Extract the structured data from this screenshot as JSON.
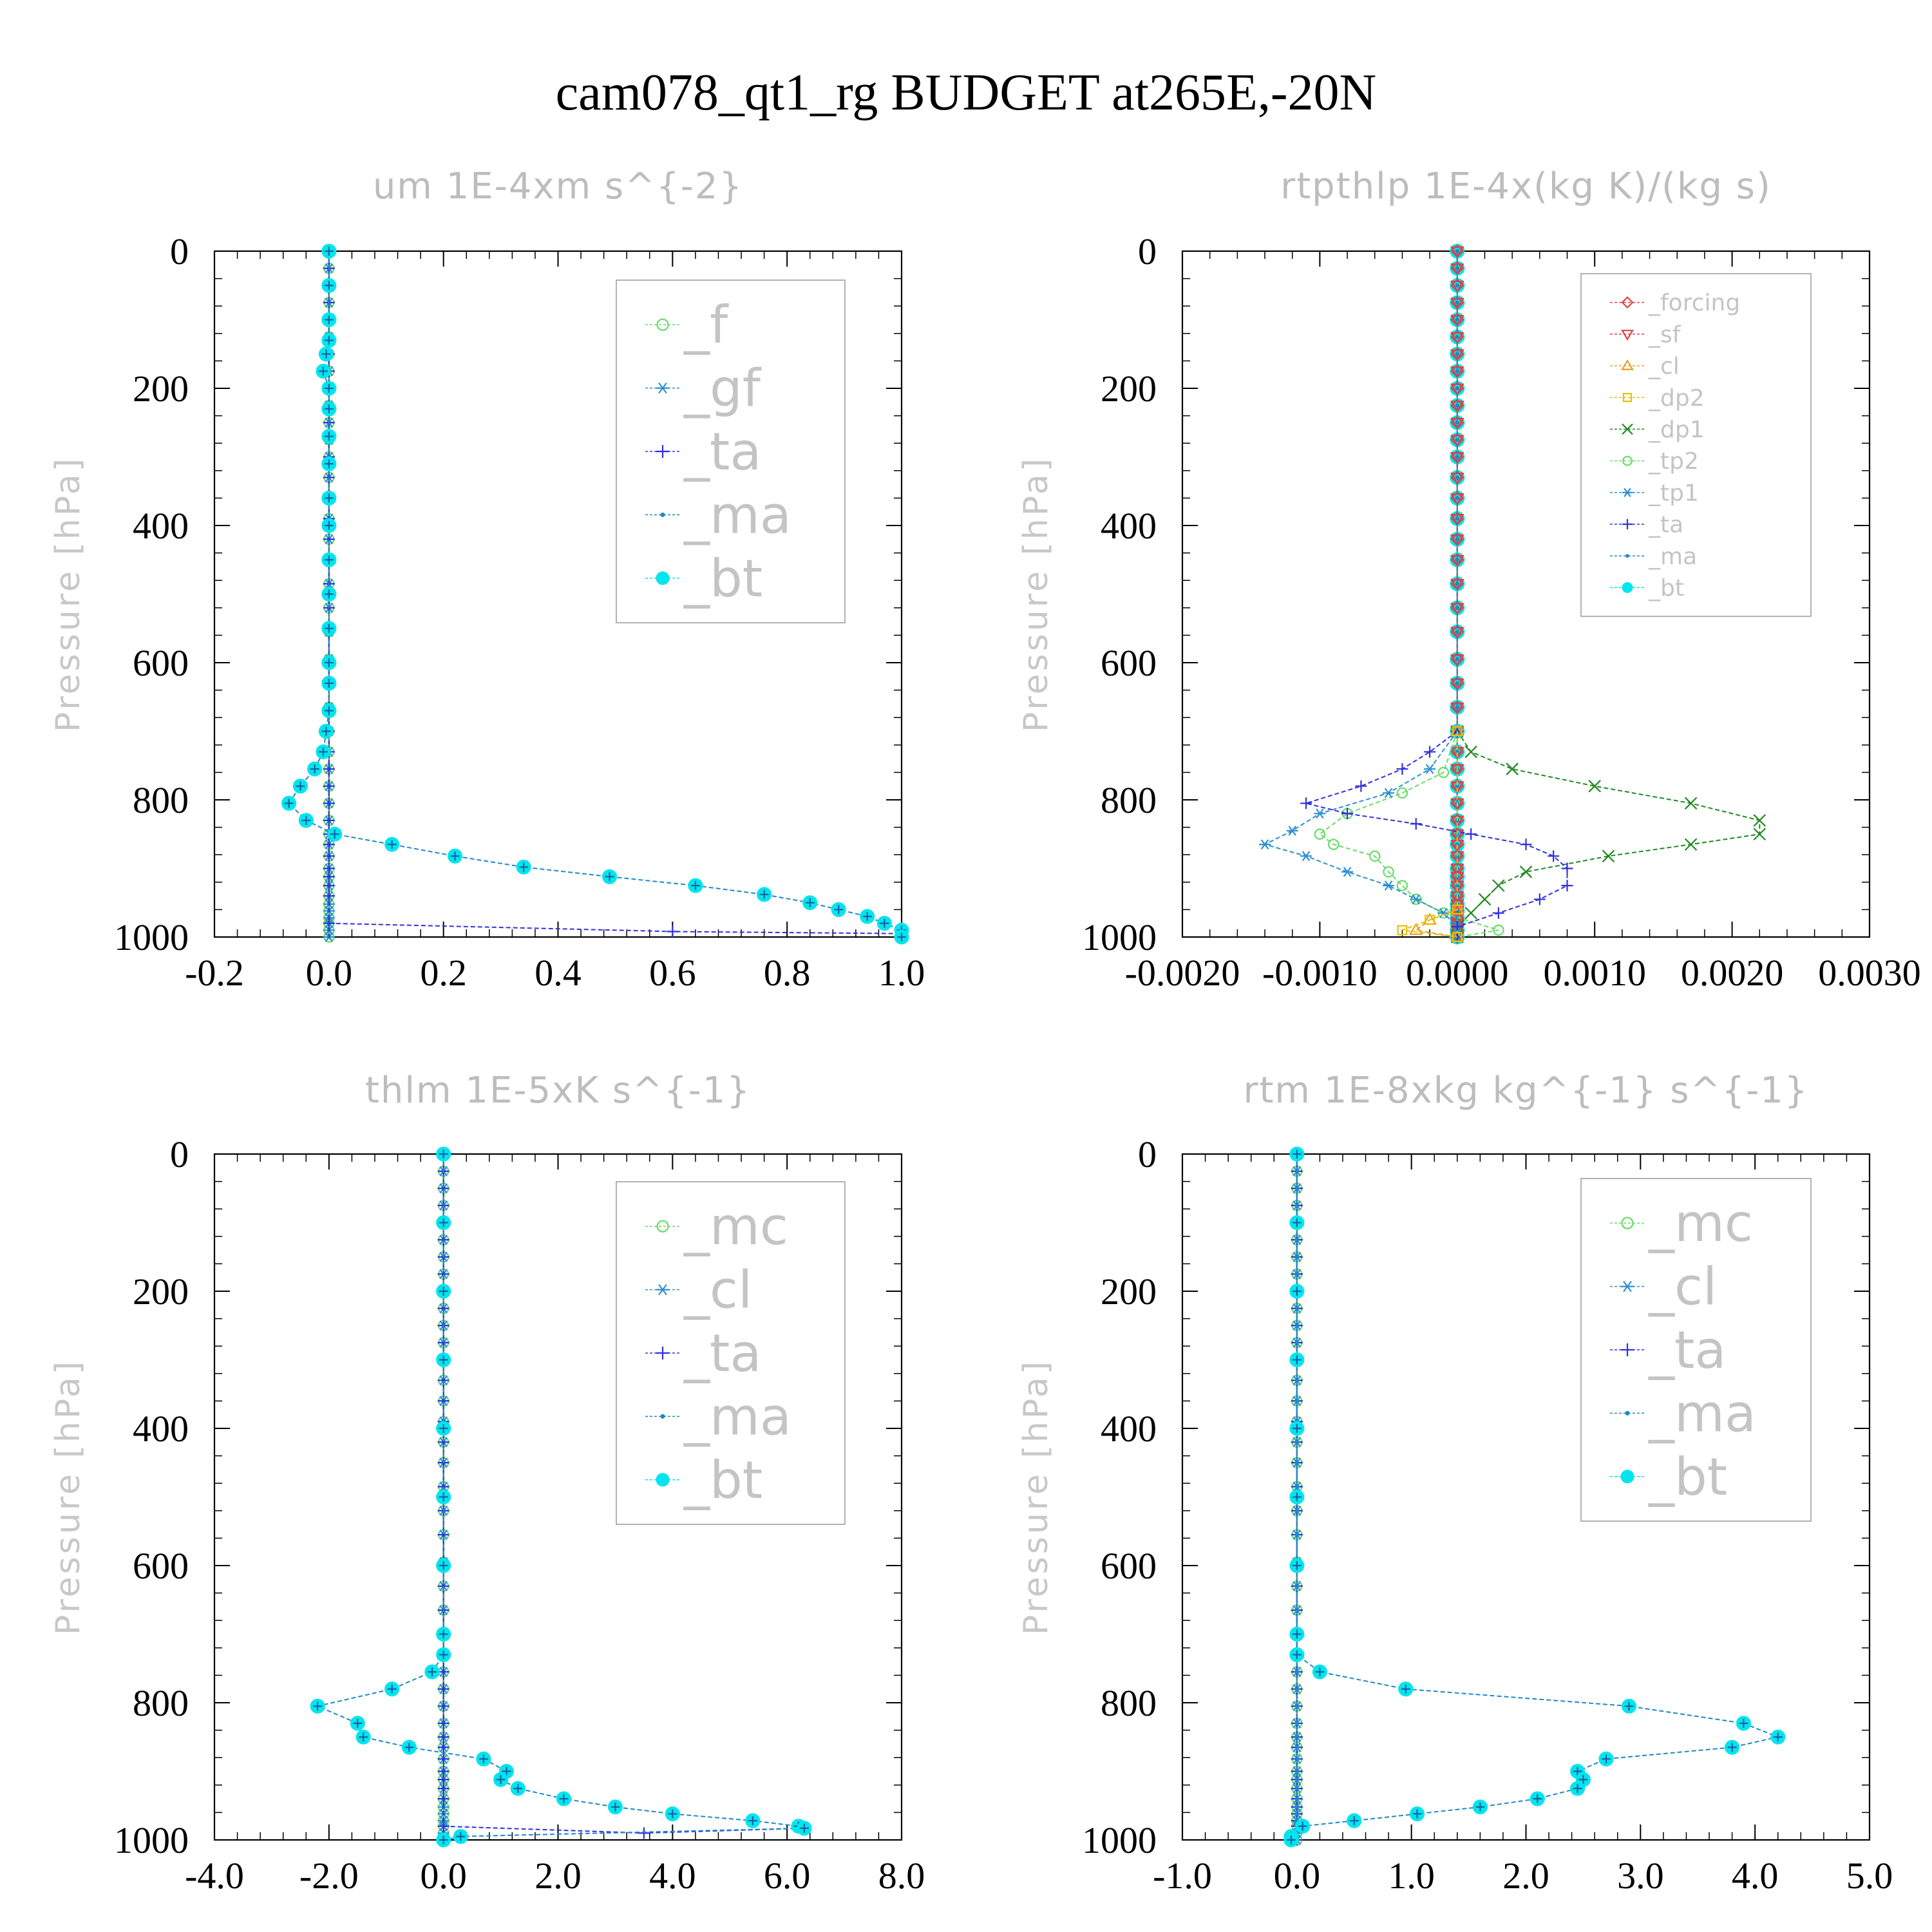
{
  "suptitle": "cam078_qt1_rg  BUDGET at265E,-20N",
  "colors": {
    "_f": "#66dd66",
    "_gf": "#2d8fd0",
    "_ta": "#3030dd",
    "_ma": "#1e88c8",
    "_bt": "#00e5ee",
    "_forcing": "#e04040",
    "_sf": "#e04040",
    "_cl": "#e8a020",
    "_dp2": "#e8c000",
    "_dp1": "#208a20",
    "_tp2": "#66dd66",
    "_tp1": "#2d8fd0",
    "_mc": "#66dd66",
    "_cl_blue": "#2d8fd0"
  },
  "chart_data": [
    {
      "id": "um",
      "type": "line",
      "title": "um   1E-4xm s^{-2}",
      "ylabel": "Pressure [hPa]",
      "xlim": [
        -0.2,
        1.0
      ],
      "ylim": [
        1000,
        0
      ],
      "y_inverted": true,
      "xticks": [
        "-0.2",
        "0.0",
        "0.2",
        "0.4",
        "0.6",
        "0.8",
        "1.0"
      ],
      "yticks": [
        "0",
        "200",
        "400",
        "600",
        "800",
        "1000"
      ],
      "legend": [
        {
          "name": "_f",
          "marker": "circle",
          "color_key": "_f"
        },
        {
          "name": "_gf",
          "marker": "asterisk",
          "color_key": "_gf"
        },
        {
          "name": "_ta",
          "marker": "plus",
          "color_key": "_ta"
        },
        {
          "name": "_ma",
          "marker": "dot",
          "color_key": "_ma"
        },
        {
          "name": "_bt",
          "marker": "filled",
          "color_key": "_bt"
        }
      ],
      "legend_large": true,
      "series": [
        {
          "name": "_f",
          "flat": 0.0
        },
        {
          "name": "_gf",
          "flat": 0.0
        },
        {
          "name": "_ta",
          "flat": 0.0,
          "points": [
            [
              0.0,
              980
            ],
            [
              0.6,
              992
            ],
            [
              1.0,
              995
            ]
          ]
        },
        {
          "name": "_ma",
          "flat": 0.0
        },
        {
          "name": "_bt",
          "points": [
            [
              0.0,
              0
            ],
            [
              0.0,
              50
            ],
            [
              0.0,
              100
            ],
            [
              0.0,
              130
            ],
            [
              -0.005,
              150
            ],
            [
              -0.01,
              175
            ],
            [
              0.0,
              200
            ],
            [
              0.0,
              230
            ],
            [
              0.0,
              270
            ],
            [
              0.0,
              310
            ],
            [
              0.0,
              360
            ],
            [
              0.0,
              400
            ],
            [
              0.0,
              450
            ],
            [
              0.0,
              500
            ],
            [
              0.0,
              550
            ],
            [
              0.0,
              600
            ],
            [
              0.0,
              630
            ],
            [
              0.0,
              670
            ],
            [
              -0.005,
              700
            ],
            [
              -0.01,
              730
            ],
            [
              -0.025,
              755
            ],
            [
              -0.05,
              780
            ],
            [
              -0.07,
              805
            ],
            [
              -0.04,
              830
            ],
            [
              0.01,
              850
            ],
            [
              0.11,
              865
            ],
            [
              0.22,
              882
            ],
            [
              0.34,
              898
            ],
            [
              0.49,
              912
            ],
            [
              0.64,
              925
            ],
            [
              0.76,
              938
            ],
            [
              0.84,
              950
            ],
            [
              0.89,
              960
            ],
            [
              0.94,
              970
            ],
            [
              0.97,
              980
            ],
            [
              1.0,
              990
            ],
            [
              1.0,
              1000
            ]
          ]
        }
      ]
    },
    {
      "id": "rtpthlp",
      "type": "line",
      "title": "rtpthlp   1E-4x(kg K)/(kg s)",
      "ylabel": "Pressure [hPa]",
      "xlim": [
        -0.002,
        0.003
      ],
      "ylim": [
        1000,
        0
      ],
      "y_inverted": true,
      "xticks": [
        "-0.0020",
        "-0.0010",
        "0.0000",
        "0.0010",
        "0.0020",
        "0.0030"
      ],
      "yticks": [
        "0",
        "200",
        "400",
        "600",
        "800",
        "1000"
      ],
      "legend": [
        {
          "name": "_forcing",
          "marker": "diamond",
          "color_key": "_forcing"
        },
        {
          "name": "_sf",
          "marker": "tri-down",
          "color_key": "_sf"
        },
        {
          "name": "_cl",
          "marker": "tri-up",
          "color_key": "_cl"
        },
        {
          "name": "_dp2",
          "marker": "square",
          "color_key": "_dp2"
        },
        {
          "name": "_dp1",
          "marker": "x",
          "color_key": "_dp1"
        },
        {
          "name": "_tp2",
          "marker": "circle",
          "color_key": "_tp2"
        },
        {
          "name": "_tp1",
          "marker": "asterisk",
          "color_key": "_tp1"
        },
        {
          "name": "_ta",
          "marker": "plus",
          "color_key": "_ta"
        },
        {
          "name": "_ma",
          "marker": "dot",
          "color_key": "_ma"
        },
        {
          "name": "_bt",
          "marker": "filled",
          "color_key": "_bt"
        }
      ],
      "legend_large": false,
      "series": [
        {
          "name": "_dp1",
          "points": [
            [
              0.0,
              700
            ],
            [
              0.0001,
              730
            ],
            [
              0.0004,
              755
            ],
            [
              0.001,
              780
            ],
            [
              0.0017,
              805
            ],
            [
              0.0022,
              830
            ],
            [
              0.0022,
              850
            ],
            [
              0.0017,
              865
            ],
            [
              0.0011,
              882
            ],
            [
              0.0005,
              905
            ],
            [
              0.0003,
              925
            ],
            [
              0.0002,
              945
            ],
            [
              0.0001,
              965
            ],
            [
              0.0,
              985
            ],
            [
              0.0,
              1000
            ]
          ]
        },
        {
          "name": "_tp2",
          "points": [
            [
              0.0,
              700
            ],
            [
              -0.0001,
              760
            ],
            [
              -0.0004,
              790
            ],
            [
              -0.0008,
              820
            ],
            [
              -0.001,
              850
            ],
            [
              -0.0009,
              865
            ],
            [
              -0.0006,
              882
            ],
            [
              -0.0005,
              905
            ],
            [
              -0.0004,
              925
            ],
            [
              -0.0003,
              945
            ],
            [
              -0.0001,
              965
            ],
            [
              0.0003,
              990
            ],
            [
              0.0,
              1000
            ]
          ]
        },
        {
          "name": "_tp1",
          "points": [
            [
              0.0,
              700
            ],
            [
              -0.0002,
              755
            ],
            [
              -0.0005,
              790
            ],
            [
              -0.001,
              820
            ],
            [
              -0.0012,
              845
            ],
            [
              -0.0014,
              865
            ],
            [
              -0.0011,
              882
            ],
            [
              -0.0008,
              905
            ],
            [
              -0.0005,
              925
            ],
            [
              -0.0003,
              945
            ],
            [
              -0.0001,
              965
            ],
            [
              0.0,
              985
            ],
            [
              0.0,
              1000
            ]
          ]
        },
        {
          "name": "_ta",
          "points": [
            [
              0.0,
              700
            ],
            [
              -0.0002,
              730
            ],
            [
              -0.0004,
              755
            ],
            [
              -0.0007,
              780
            ],
            [
              -0.0011,
              805
            ],
            [
              -0.0008,
              820
            ],
            [
              -0.0003,
              835
            ],
            [
              0.0001,
              850
            ],
            [
              0.0005,
              865
            ],
            [
              0.0007,
              882
            ],
            [
              0.0008,
              900
            ],
            [
              0.0008,
              925
            ],
            [
              0.0006,
              945
            ],
            [
              0.0003,
              965
            ],
            [
              0.0,
              985
            ],
            [
              0.0,
              1000
            ]
          ]
        },
        {
          "name": "_cl",
          "points": [
            [
              0.0,
              700
            ],
            [
              0.0,
              960
            ],
            [
              -0.0002,
              975
            ],
            [
              -0.0003,
              990
            ],
            [
              0.0,
              1000
            ]
          ]
        },
        {
          "name": "_dp2",
          "points": [
            [
              0.0,
              700
            ],
            [
              0.0,
              960
            ],
            [
              -0.0002,
              975
            ],
            [
              -0.0004,
              990
            ],
            [
              0.0,
              1000
            ]
          ]
        },
        {
          "name": "_bt",
          "flat": 0.0
        },
        {
          "name": "_forcing",
          "flat": 0.0
        },
        {
          "name": "_sf",
          "flat": 0.0
        },
        {
          "name": "_ma",
          "flat": 0.0
        }
      ]
    },
    {
      "id": "thlm",
      "type": "line",
      "title": "thlm   1E-5xK s^{-1}",
      "ylabel": "Pressure [hPa]",
      "xlim": [
        -4.0,
        8.0
      ],
      "ylim": [
        1000,
        0
      ],
      "y_inverted": true,
      "xticks": [
        "-4.0",
        "-2.0",
        "0.0",
        "2.0",
        "4.0",
        "6.0",
        "8.0"
      ],
      "yticks": [
        "0",
        "200",
        "400",
        "600",
        "800",
        "1000"
      ],
      "legend": [
        {
          "name": "_mc",
          "marker": "circle",
          "color_key": "_mc"
        },
        {
          "name": "_cl",
          "marker": "asterisk",
          "color_key": "_cl_blue"
        },
        {
          "name": "_ta",
          "marker": "plus",
          "color_key": "_ta"
        },
        {
          "name": "_ma",
          "marker": "dot",
          "color_key": "_ma"
        },
        {
          "name": "_bt",
          "marker": "filled",
          "color_key": "_bt"
        }
      ],
      "legend_large": true,
      "series": [
        {
          "name": "_mc",
          "flat": 0.0
        },
        {
          "name": "_cl",
          "flat": 0.0
        },
        {
          "name": "_ta",
          "flat": 0.0,
          "points": [
            [
              0.0,
              980
            ],
            [
              3.5,
              990
            ],
            [
              6.3,
              983
            ]
          ]
        },
        {
          "name": "_ma",
          "flat": 0.0
        },
        {
          "name": "_bt",
          "points": [
            [
              0.0,
              0
            ],
            [
              0.0,
              100
            ],
            [
              0.0,
              200
            ],
            [
              0.0,
              300
            ],
            [
              0.0,
              400
            ],
            [
              0.0,
              500
            ],
            [
              0.0,
              600
            ],
            [
              0.0,
              700
            ],
            [
              0.0,
              730
            ],
            [
              -0.2,
              755
            ],
            [
              -0.9,
              780
            ],
            [
              -2.2,
              805
            ],
            [
              -1.5,
              830
            ],
            [
              -1.4,
              850
            ],
            [
              -0.6,
              865
            ],
            [
              0.7,
              882
            ],
            [
              1.1,
              900
            ],
            [
              1.0,
              912
            ],
            [
              1.3,
              925
            ],
            [
              2.1,
              940
            ],
            [
              3.0,
              952
            ],
            [
              4.0,
              962
            ],
            [
              5.4,
              972
            ],
            [
              6.2,
              980
            ],
            [
              6.3,
              983
            ],
            [
              0.3,
              995
            ],
            [
              0.0,
              1000
            ]
          ]
        }
      ]
    },
    {
      "id": "rtm",
      "type": "line",
      "title": "rtm   1E-8xkg kg^{-1} s^{-1}",
      "ylabel": "Pressure [hPa]",
      "xlim": [
        -1.0,
        5.0
      ],
      "ylim": [
        1000,
        0
      ],
      "y_inverted": true,
      "xticks": [
        "-1.0",
        "0.0",
        "1.0",
        "2.0",
        "3.0",
        "4.0",
        "5.0"
      ],
      "yticks": [
        "0",
        "200",
        "400",
        "600",
        "800",
        "1000"
      ],
      "legend": [
        {
          "name": "_mc",
          "marker": "circle",
          "color_key": "_mc"
        },
        {
          "name": "_cl",
          "marker": "asterisk",
          "color_key": "_cl_blue"
        },
        {
          "name": "_ta",
          "marker": "plus",
          "color_key": "_ta"
        },
        {
          "name": "_ma",
          "marker": "dot",
          "color_key": "_ma"
        },
        {
          "name": "_bt",
          "marker": "filled",
          "color_key": "_bt"
        }
      ],
      "legend_large": true,
      "series": [
        {
          "name": "_mc",
          "flat": 0.0
        },
        {
          "name": "_cl",
          "flat": 0.0
        },
        {
          "name": "_ta",
          "flat": 0.0
        },
        {
          "name": "_ma",
          "flat": 0.0
        },
        {
          "name": "_bt",
          "points": [
            [
              0.0,
              0
            ],
            [
              0.0,
              100
            ],
            [
              0.0,
              200
            ],
            [
              0.0,
              300
            ],
            [
              0.0,
              400
            ],
            [
              0.0,
              500
            ],
            [
              0.0,
              600
            ],
            [
              0.0,
              700
            ],
            [
              0.0,
              730
            ],
            [
              0.2,
              755
            ],
            [
              0.95,
              780
            ],
            [
              2.9,
              805
            ],
            [
              3.9,
              830
            ],
            [
              4.2,
              850
            ],
            [
              3.8,
              865
            ],
            [
              2.7,
              882
            ],
            [
              2.45,
              900
            ],
            [
              2.5,
              912
            ],
            [
              2.45,
              925
            ],
            [
              2.1,
              940
            ],
            [
              1.6,
              952
            ],
            [
              1.05,
              962
            ],
            [
              0.5,
              972
            ],
            [
              0.05,
              980
            ],
            [
              -0.05,
              995
            ],
            [
              -0.05,
              1000
            ]
          ]
        }
      ]
    }
  ]
}
